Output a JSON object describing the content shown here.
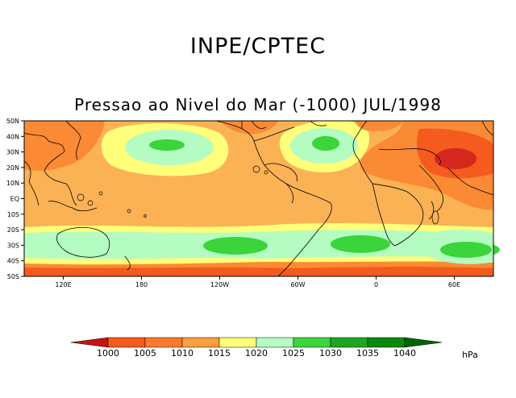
{
  "header": {
    "title": "INPE/CPTEC",
    "subtitle": "Pressao ao Nivel do Mar (-1000) JUL/1998"
  },
  "map": {
    "lat_labels": [
      "50N",
      "40N",
      "30N",
      "20N",
      "10N",
      "EQ",
      "10S",
      "20S",
      "30S",
      "40S",
      "50S"
    ],
    "lon_labels": [
      "120E",
      "180",
      "120W",
      "60W",
      "0",
      "60E"
    ],
    "lon_values": [
      120,
      180,
      240,
      300,
      360,
      420
    ],
    "lat_range": [
      -50,
      50
    ],
    "lon_range": [
      90,
      450
    ],
    "fill_colors": {
      "lt1005": "#f55a1e",
      "r1005_1010": "#fb8a34",
      "r1010_1015": "#fbb255",
      "r1015_1020": "#ffff7a",
      "r1020_1025": "#b4fcc2",
      "r1025_1030": "#3bd43b",
      "r1030_1035": "#1fa51f",
      "gt1040": "#d4281e",
      "land": "#000000"
    }
  },
  "colorbar": {
    "levels": [
      "1000",
      "1005",
      "1010",
      "1015",
      "1020",
      "1025",
      "1030",
      "1035",
      "1040"
    ],
    "colors": [
      "#c8140f",
      "#f55a1e",
      "#fb7a2e",
      "#fb9e40",
      "#ffff7a",
      "#b4fcc2",
      "#3bd43b",
      "#1fa51f",
      "#0a8a0a",
      "#006400"
    ],
    "unit": "hPa"
  }
}
